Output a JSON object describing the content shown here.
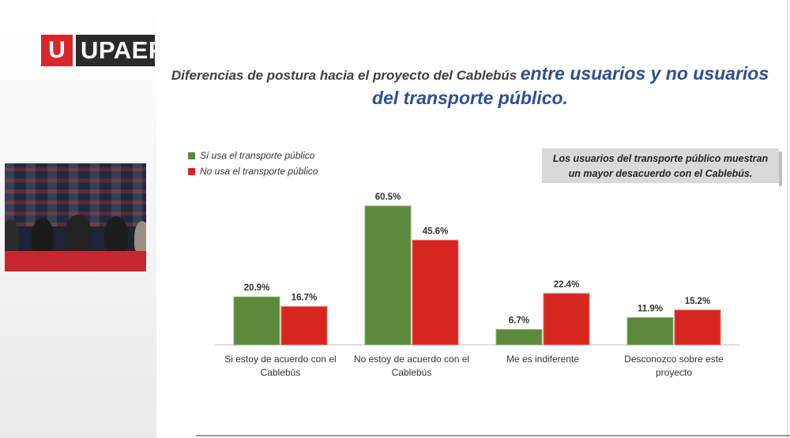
{
  "logo": {
    "badge_letter": "U",
    "wordmark": "UPAEP"
  },
  "title": {
    "part1": "Diferencias de postura hacia el proyecto del Cablebús",
    "part2": "entre usuarios y no usuarios",
    "part3": "del transporte público."
  },
  "note": {
    "line1": "Los usuarios del transporte público muestran",
    "line2": "un mayor desacuerdo con el Cablebús."
  },
  "video_feed": {
    "label": "conference-video-feed"
  },
  "chart_data": {
    "type": "bar",
    "title": "",
    "xlabel": "",
    "ylabel": "",
    "ylim": [
      0,
      70
    ],
    "grid": false,
    "legend_position": "top-left",
    "categories": [
      [
        "Si estoy de acuerdo con el",
        "Cablebús"
      ],
      [
        "No estoy de acuerdo con el",
        "Cablebús"
      ],
      [
        "Me es indiferente"
      ],
      [
        "Desconozco sobre este",
        "proyecto"
      ]
    ],
    "series": [
      {
        "name": "Sí usa el transporte público",
        "color": "#5b8a3c",
        "values": [
          20.9,
          60.5,
          6.7,
          11.9
        ],
        "labels": [
          "20.9%",
          "60.5%",
          "6.7%",
          "11.9%"
        ]
      },
      {
        "name": "No usa el transporte público",
        "color": "#d7261f",
        "values": [
          16.7,
          45.6,
          22.4,
          15.2
        ],
        "labels": [
          "16.7%",
          "45.6%",
          "22.4%",
          "15.2%"
        ]
      }
    ]
  }
}
